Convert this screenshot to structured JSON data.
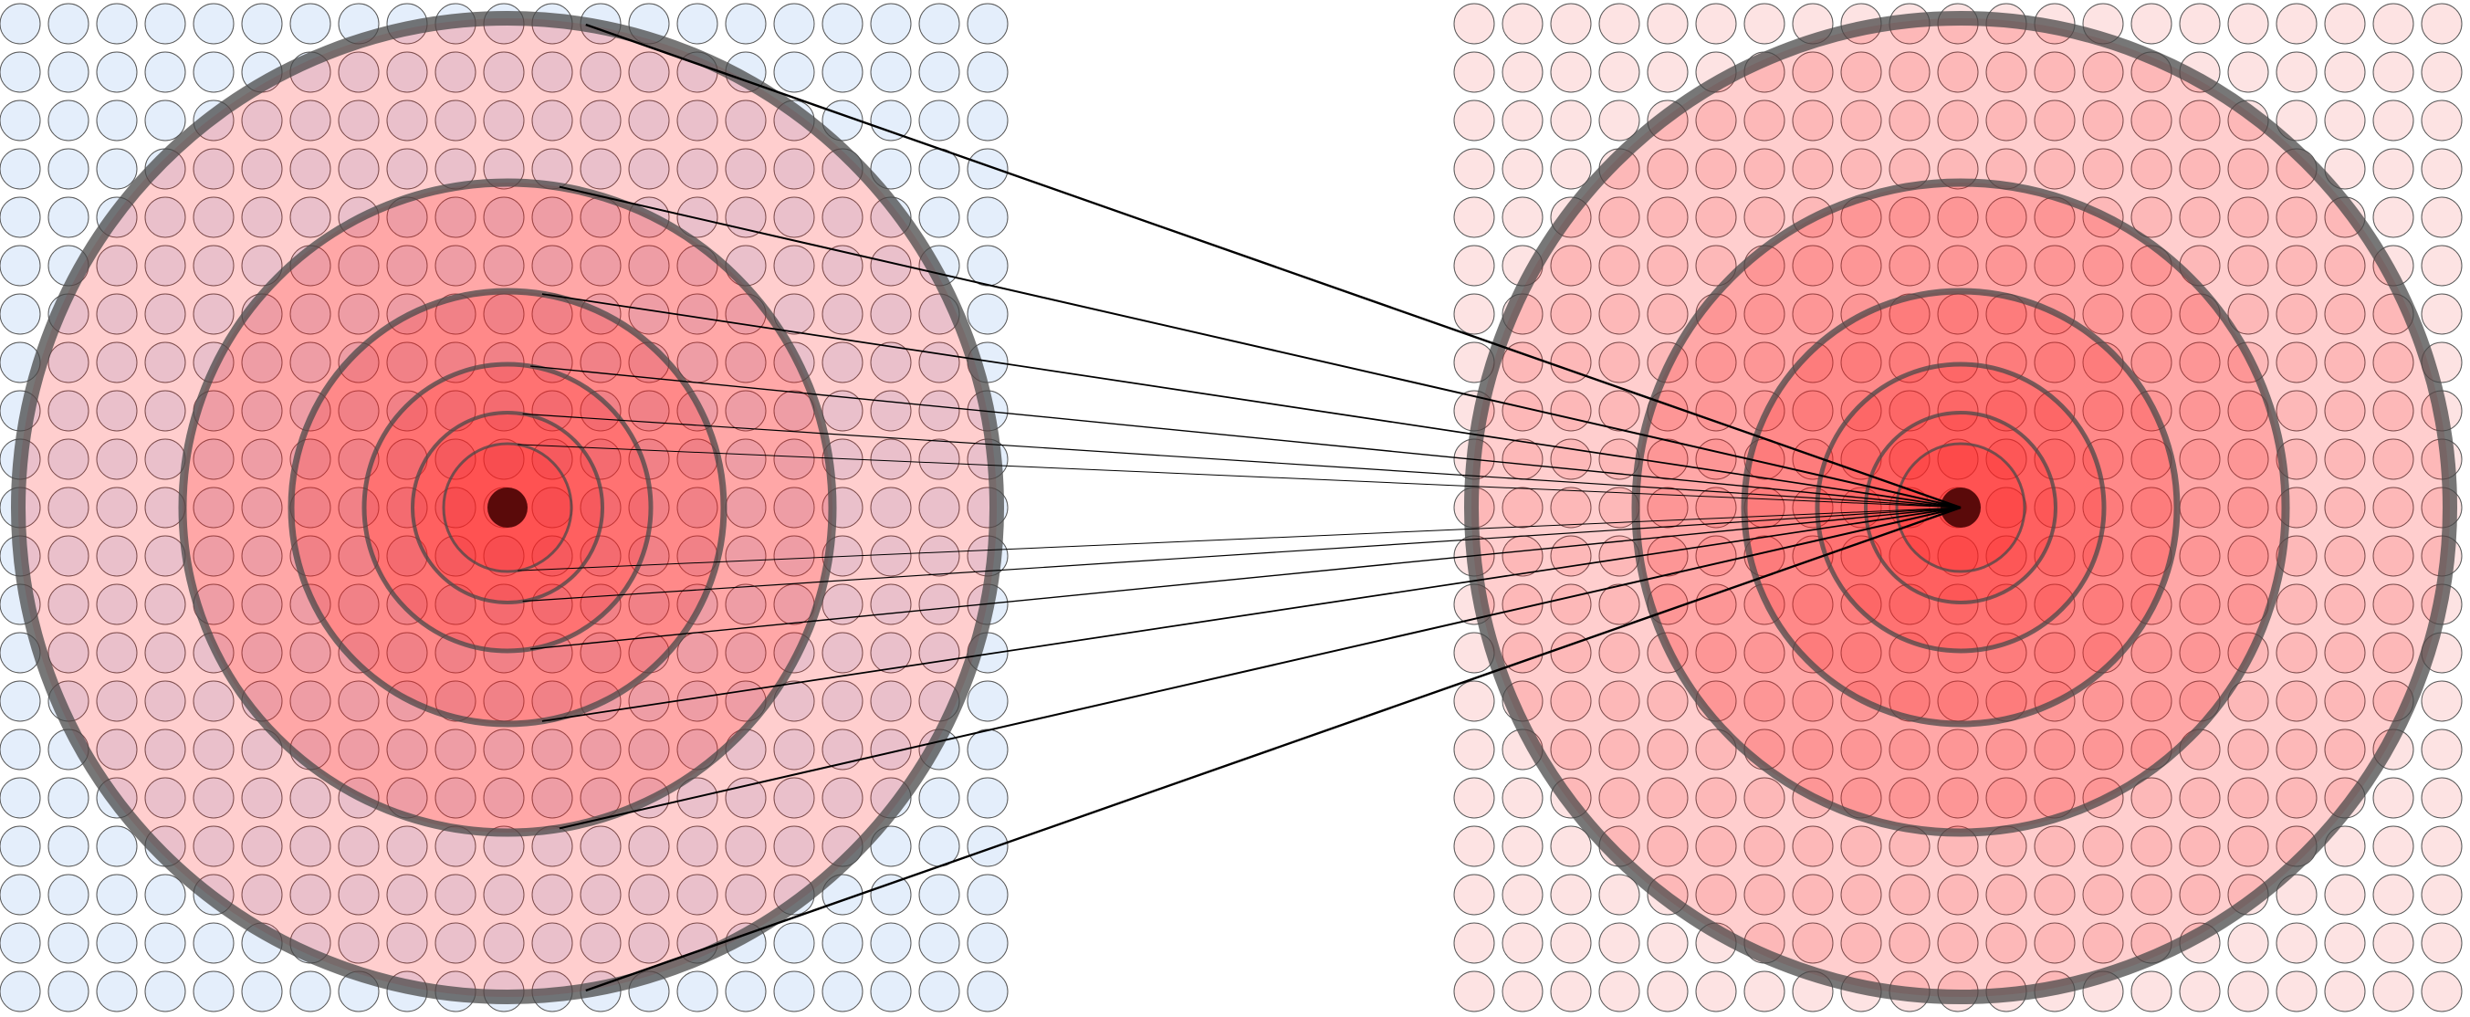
{
  "diagram": {
    "panels": [
      {
        "id": "left",
        "grid_cell_color": "#e4eefb",
        "zone_color": "#ff2020",
        "zone_opacities": [
          0.22,
          0.22,
          0.22,
          0.22,
          0.22,
          0.22
        ]
      },
      {
        "id": "right",
        "grid_cell_color": "#fde3e3",
        "zone_color": "#ff2020",
        "zone_opacities": [
          0.22,
          0.22,
          0.22,
          0.22,
          0.22,
          0.22
        ]
      }
    ],
    "grid_stroke_color": "#555555",
    "ring_stroke_color": "#4a4a4a",
    "ring_opacity": 0.75,
    "center_dot_color": "#5a0a0a",
    "connector_color": "#000000",
    "ring_count": 6,
    "connector_count": 12
  }
}
